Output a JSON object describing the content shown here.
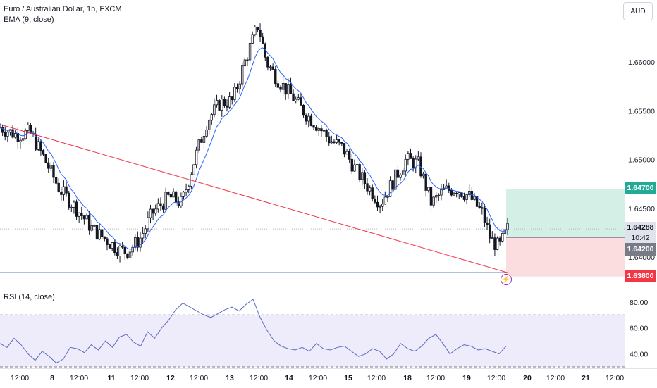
{
  "legend": {
    "symbol_line": "Euro / Australian Dollar, 1h, FXCM",
    "ema_line": "EMA (9, close)"
  },
  "currency_button": "AUD",
  "price_axis": {
    "ticks": [
      "1.66000",
      "1.65500",
      "1.65000",
      "1.64500",
      "1.64000"
    ]
  },
  "price_tags": {
    "take_profit": "1.64700",
    "current_price": "1.64288",
    "countdown": "10:42",
    "entry": "1.64200",
    "stop_loss": "1.63800"
  },
  "rsi": {
    "legend": "RSI (14, close)",
    "ticks": [
      "80.00",
      "60.00",
      "40.00"
    ]
  },
  "time_axis": {
    "labels": [
      "12:00",
      "8",
      "12:00",
      "11",
      "12:00",
      "12",
      "12:00",
      "13",
      "12:00",
      "14",
      "12:00",
      "15",
      "12:00",
      "18",
      "12:00",
      "19",
      "12:00",
      "20",
      "12:00",
      "21",
      "12:00"
    ]
  },
  "colors": {
    "candle": "#131722",
    "ema": "#2962ff",
    "trendline": "#f23645",
    "support_line": "#2a5cad",
    "take_profit_zone": "#d4f0e6",
    "stop_loss_zone": "#fbdde0",
    "rsi_line": "#5b6bc0",
    "rsi_band": "#eeebfb"
  },
  "icons": {
    "alert_marker": "lightning-bolt-icon"
  },
  "chart_data": {
    "type": "candlestick",
    "title": "Euro / Australian Dollar, 1h, FXCM",
    "price_range": [
      1.6368,
      1.666
    ],
    "x_range": [
      0,
      120
    ],
    "waypoints": [
      [
        0,
        1.6533
      ],
      [
        4,
        1.6525
      ],
      [
        7,
        1.6528
      ],
      [
        10,
        1.6505
      ],
      [
        14,
        1.647
      ],
      [
        18,
        1.645
      ],
      [
        22,
        1.6428
      ],
      [
        25,
        1.6418
      ],
      [
        28,
        1.6408
      ],
      [
        30,
        1.6405
      ],
      [
        33,
        1.6418
      ],
      [
        36,
        1.6445
      ],
      [
        40,
        1.6462
      ],
      [
        43,
        1.6455
      ],
      [
        46,
        1.65
      ],
      [
        49,
        1.654
      ],
      [
        52,
        1.6558
      ],
      [
        55,
        1.656
      ],
      [
        58,
        1.6602
      ],
      [
        61,
        1.6638
      ],
      [
        63,
        1.66
      ],
      [
        66,
        1.658
      ],
      [
        69,
        1.6565
      ],
      [
        72,
        1.6548
      ],
      [
        75,
        1.6535
      ],
      [
        78,
        1.652
      ],
      [
        81,
        1.6512
      ],
      [
        84,
        1.649
      ],
      [
        87,
        1.6472
      ],
      [
        90,
        1.6455
      ],
      [
        93,
        1.6478
      ],
      [
        96,
        1.65
      ],
      [
        99,
        1.6495
      ],
      [
        102,
        1.6455
      ],
      [
        105,
        1.6468
      ],
      [
        108,
        1.647
      ],
      [
        111,
        1.6462
      ],
      [
        114,
        1.6445
      ],
      [
        116,
        1.6418
      ],
      [
        118,
        1.641
      ],
      [
        120,
        1.6429
      ]
    ],
    "trendline": [
      [
        0,
        1.6536
      ],
      [
        120,
        1.6384
      ]
    ],
    "support_level": 1.6384,
    "position": {
      "take_profit": 1.647,
      "entry": 1.642,
      "stop_loss": 1.638,
      "current": 1.64288
    },
    "rsi": {
      "ylim": [
        30,
        88
      ],
      "levels": [
        70,
        30
      ],
      "values": [
        48,
        45,
        52,
        47,
        40,
        35,
        42,
        38,
        33,
        36,
        45,
        44,
        41,
        47,
        43,
        50,
        45,
        53,
        55,
        49,
        46,
        57,
        52,
        60,
        66,
        74,
        79,
        76,
        73,
        70,
        68,
        71,
        74,
        76,
        73,
        78,
        82,
        68,
        58,
        50,
        46,
        44,
        43,
        45,
        42,
        48,
        44,
        43,
        45,
        46,
        42,
        38,
        40,
        44,
        42,
        36,
        40,
        48,
        44,
        42,
        46,
        52,
        55,
        48,
        40,
        44,
        47,
        46,
        43,
        44,
        42,
        40,
        46
      ]
    },
    "xlabel": "",
    "ylabel": ""
  }
}
